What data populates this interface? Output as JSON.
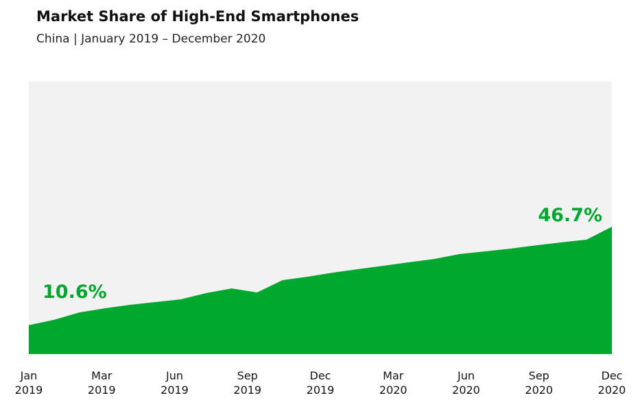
{
  "chart_data": {
    "type": "area",
    "title": "Market Share of High-End Smartphones",
    "subtitle": "China | January 2019 – December 2020",
    "color": "#00a82d",
    "background": "#f2f2f2",
    "ylim": [
      0,
      100
    ],
    "values": [
      10.6,
      12.6,
      15.3,
      16.8,
      18.1,
      19.1,
      20.1,
      22.4,
      24.1,
      22.6,
      27.1,
      28.4,
      29.9,
      31.2,
      32.4,
      33.7,
      34.9,
      36.7,
      37.7,
      38.7,
      39.9,
      41.0,
      42.0,
      46.7
    ],
    "value_labels": [
      "10.6%",
      null,
      null,
      null,
      null,
      null,
      null,
      null,
      null,
      null,
      null,
      null,
      null,
      null,
      null,
      null,
      null,
      null,
      null,
      null,
      null,
      null,
      null,
      "46.7%"
    ],
    "xtick_labels": [
      "Jan\n2019",
      "Mar\n2019",
      "Jun\n2019",
      "Sep\n2019",
      "Dec\n2019",
      "Mar\n2020",
      "Jun\n2020",
      "Sep\n2020",
      "Dec\n2020"
    ]
  }
}
